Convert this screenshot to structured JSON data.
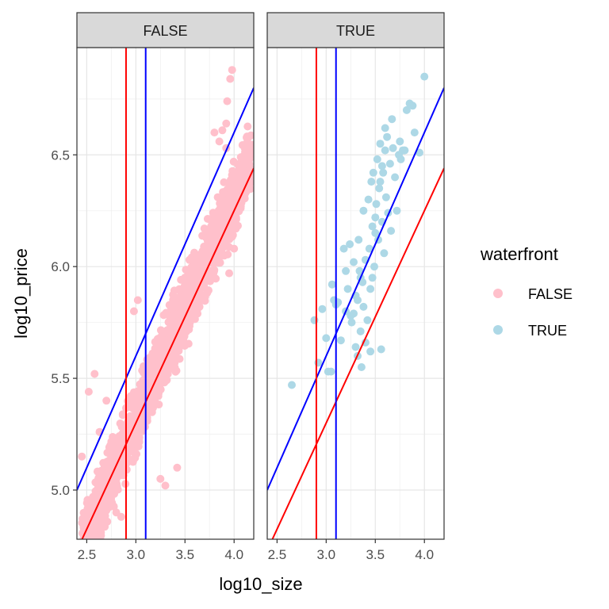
{
  "chart_data": {
    "type": "scatter",
    "facet_variable": "waterfront",
    "panels": [
      {
        "label": "FALSE",
        "point_color": "#FFC0CB",
        "scatter_band": {
          "x_range": [
            2.45,
            4.18
          ],
          "centerline": {
            "intercept": 2.31,
            "slope": 1.0
          },
          "half_width": 0.22
        },
        "points": [
          [
            2.45,
            5.15
          ],
          [
            2.62,
            4.9
          ],
          [
            2.68,
            4.92
          ],
          [
            2.74,
            5.2
          ],
          [
            2.8,
            4.9
          ],
          [
            2.85,
            4.88
          ],
          [
            2.52,
            5.44
          ],
          [
            2.58,
            5.52
          ],
          [
            2.63,
            5.26
          ],
          [
            2.7,
            5.4
          ],
          [
            3.92,
            6.53
          ],
          [
            3.98,
            6.88
          ],
          [
            3.96,
            6.84
          ],
          [
            3.93,
            6.74
          ],
          [
            3.92,
            6.64
          ],
          [
            3.85,
            6.56
          ],
          [
            3.88,
            6.61
          ],
          [
            3.8,
            6.6
          ],
          [
            4.17,
            6.38
          ],
          [
            4.0,
            6.08
          ],
          [
            3.95,
            5.97
          ],
          [
            3.9,
            6.05
          ],
          [
            3.42,
            5.1
          ],
          [
            3.3,
            5.02
          ],
          [
            3.25,
            5.05
          ],
          [
            2.98,
            5.8
          ],
          [
            3.02,
            5.85
          ]
        ]
      },
      {
        "label": "TRUE",
        "point_color": "#ADD8E6",
        "points": [
          [
            2.65,
            5.47
          ],
          [
            2.88,
            5.76
          ],
          [
            2.92,
            5.57
          ],
          [
            2.96,
            5.81
          ],
          [
            3.0,
            5.68
          ],
          [
            3.02,
            5.53
          ],
          [
            3.05,
            5.53
          ],
          [
            3.06,
            5.92
          ],
          [
            3.08,
            5.85
          ],
          [
            3.1,
            5.83
          ],
          [
            3.12,
            5.84
          ],
          [
            3.15,
            5.67
          ],
          [
            3.18,
            6.08
          ],
          [
            3.2,
            5.8
          ],
          [
            3.22,
            5.9
          ],
          [
            3.24,
            6.1
          ],
          [
            3.25,
            5.78
          ],
          [
            3.26,
            5.75
          ],
          [
            3.28,
            6.02
          ],
          [
            3.3,
            5.87
          ],
          [
            3.3,
            5.64
          ],
          [
            3.32,
            5.6
          ],
          [
            3.33,
            6.12
          ],
          [
            3.34,
            5.98
          ],
          [
            3.35,
            5.71
          ],
          [
            3.36,
            5.55
          ],
          [
            3.37,
            5.93
          ],
          [
            3.38,
            6.25
          ],
          [
            3.38,
            5.82
          ],
          [
            3.4,
            6.03
          ],
          [
            3.42,
            5.76
          ],
          [
            3.43,
            6.3
          ],
          [
            3.44,
            6.08
          ],
          [
            3.45,
            5.9
          ],
          [
            3.46,
            6.38
          ],
          [
            3.47,
            6.18
          ],
          [
            3.48,
            6.42
          ],
          [
            3.49,
            6.0
          ],
          [
            3.5,
            6.22
          ],
          [
            3.51,
            6.28
          ],
          [
            3.52,
            6.48
          ],
          [
            3.53,
            6.12
          ],
          [
            3.54,
            6.35
          ],
          [
            3.55,
            6.55
          ],
          [
            3.56,
            5.63
          ],
          [
            3.57,
            6.2
          ],
          [
            3.58,
            6.42
          ],
          [
            3.59,
            6.06
          ],
          [
            3.6,
            6.52
          ],
          [
            3.61,
            6.31
          ],
          [
            3.62,
            6.58
          ],
          [
            3.63,
            6.24
          ],
          [
            3.65,
            6.46
          ],
          [
            3.66,
            6.16
          ],
          [
            3.68,
            6.53
          ],
          [
            3.7,
            6.4
          ],
          [
            3.72,
            6.25
          ],
          [
            3.74,
            6.5
          ],
          [
            3.75,
            6.56
          ],
          [
            3.76,
            6.48
          ],
          [
            3.78,
            6.52
          ],
          [
            3.8,
            6.52
          ],
          [
            3.82,
            6.7
          ],
          [
            3.85,
            6.73
          ],
          [
            3.88,
            6.72
          ],
          [
            3.9,
            6.6
          ],
          [
            3.95,
            6.51
          ],
          [
            4.0,
            6.85
          ],
          [
            3.6,
            6.62
          ],
          [
            3.67,
            6.66
          ],
          [
            3.55,
            6.38
          ],
          [
            3.5,
            6.15
          ],
          [
            3.47,
            5.95
          ],
          [
            3.32,
            5.85
          ],
          [
            3.28,
            5.79
          ],
          [
            3.4,
            5.66
          ],
          [
            3.45,
            5.62
          ],
          [
            3.2,
            5.98
          ],
          [
            3.35,
            5.95
          ],
          [
            3.57,
            6.45
          ]
        ]
      }
    ],
    "reference_lines": {
      "vertical": [
        {
          "x": 2.9,
          "color": "#FF0000"
        },
        {
          "x": 3.1,
          "color": "#0000FF"
        }
      ],
      "sloped": [
        {
          "intercept": 2.6,
          "slope": 1.0,
          "color": "#0000FF"
        },
        {
          "intercept": 2.45,
          "slope": 0.95,
          "color": "#FF0000"
        }
      ]
    },
    "x_axis": {
      "title": "log10_size",
      "range": [
        2.4,
        4.2
      ],
      "ticks": [
        2.5,
        3.0,
        3.5,
        4.0
      ],
      "tick_labels": [
        "2.5",
        "3.0",
        "3.5",
        "4.0"
      ]
    },
    "y_axis": {
      "title": "log10_price",
      "range": [
        4.78,
        6.98
      ],
      "ticks": [
        5.0,
        5.5,
        6.0,
        6.5
      ],
      "tick_labels": [
        "5.0",
        "5.5",
        "6.0",
        "6.5"
      ]
    },
    "legend": {
      "title": "waterfront",
      "placement": "right",
      "entries": [
        {
          "label": "FALSE",
          "color": "#FFC0CB"
        },
        {
          "label": "TRUE",
          "color": "#ADD8E6"
        }
      ]
    },
    "grid": true,
    "theme": "bw"
  }
}
